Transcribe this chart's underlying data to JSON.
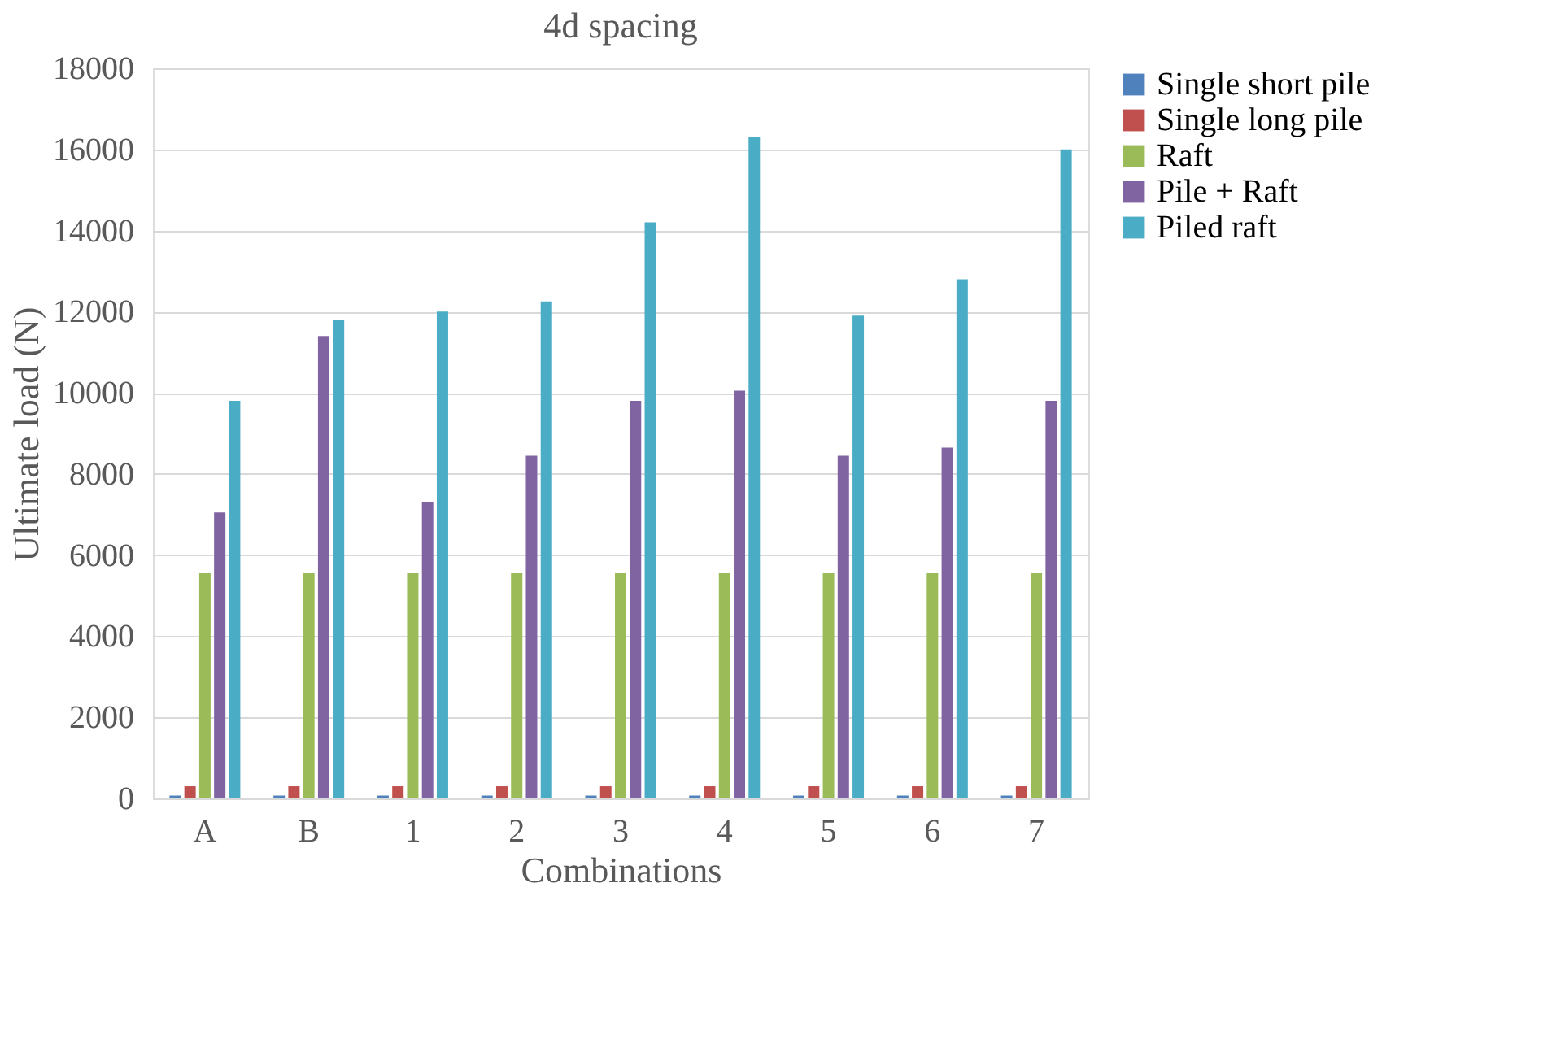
{
  "chart_data": {
    "type": "bar",
    "title": "4d spacing",
    "xlabel": "Combinations",
    "ylabel": "Ultimate load (N)",
    "categories": [
      "A",
      "B",
      "1",
      "2",
      "3",
      "4",
      "5",
      "6",
      "7"
    ],
    "series": [
      {
        "name": "Single short pile",
        "color": "#4f81bd",
        "values": [
          70,
          70,
          70,
          70,
          70,
          70,
          70,
          70,
          70
        ]
      },
      {
        "name": "Single long pile",
        "color": "#c0504d",
        "values": [
          300,
          300,
          300,
          300,
          300,
          300,
          300,
          300,
          300
        ]
      },
      {
        "name": "Raft",
        "color": "#9bbb59",
        "values": [
          5550,
          5550,
          5550,
          5550,
          5550,
          5550,
          5550,
          5550,
          5550
        ]
      },
      {
        "name": "Pile + Raft",
        "color": "#8064a2",
        "values": [
          7050,
          11400,
          7300,
          8450,
          9800,
          10050,
          8450,
          8650,
          9800
        ]
      },
      {
        "name": "Piled raft",
        "color": "#4bacc6",
        "values": [
          9800,
          11800,
          12000,
          12250,
          14200,
          16300,
          11900,
          12800,
          16000
        ]
      }
    ],
    "ylim": [
      0,
      18000
    ],
    "yticks": [
      0,
      2000,
      4000,
      6000,
      8000,
      10000,
      12000,
      14000,
      16000,
      18000
    ],
    "grid": "y",
    "legend": "right"
  }
}
